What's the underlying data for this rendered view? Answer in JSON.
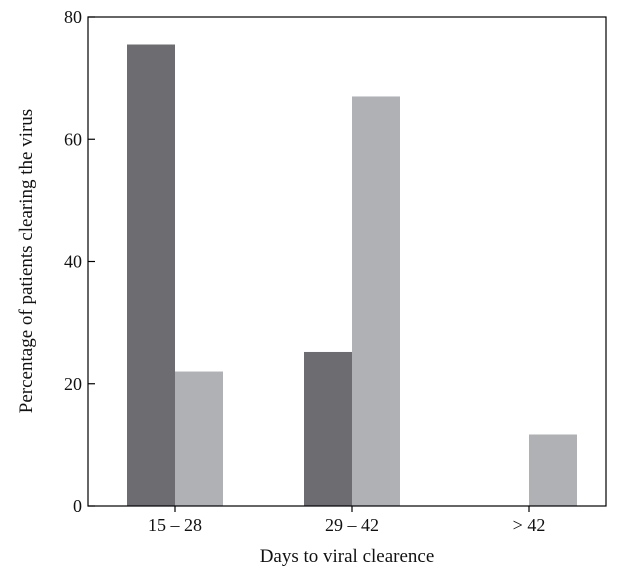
{
  "chart_data": {
    "type": "bar",
    "title": "",
    "xlabel": "Days to viral clearence",
    "ylabel": "Percentage of patients clearing the virus",
    "categories": [
      "15 – 28",
      "29 – 42",
      "> 42"
    ],
    "series": [
      {
        "values": [
          75.5,
          25.2,
          0
        ],
        "color": "#6d6d71"
      },
      {
        "values": [
          22.0,
          67.0,
          11.7
        ],
        "color": "#b0b1b5"
      }
    ],
    "ylim": [
      0,
      80
    ],
    "yticks": [
      "0",
      "20",
      "40",
      "60",
      "80"
    ],
    "grid": false,
    "legend": "none"
  }
}
